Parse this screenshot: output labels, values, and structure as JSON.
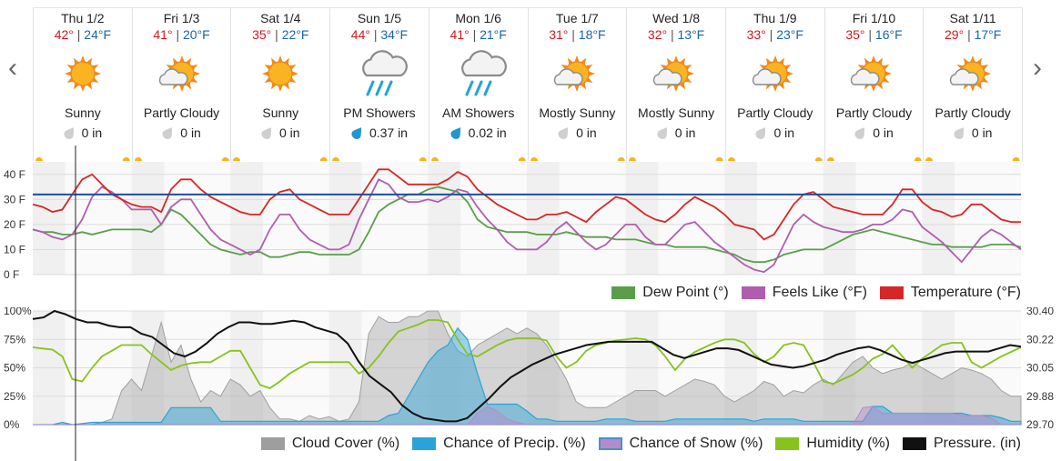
{
  "days": [
    {
      "name": "Thu 1/2",
      "hi": "42°",
      "lo": "24°F",
      "icon": "sunny-icon",
      "cond": "Sunny",
      "precip": "0 in",
      "drop": "gray"
    },
    {
      "name": "Fri 1/3",
      "hi": "41°",
      "lo": "20°F",
      "icon": "partly-cloudy-icon",
      "cond": "Partly Cloudy",
      "precip": "0 in",
      "drop": "gray"
    },
    {
      "name": "Sat 1/4",
      "hi": "35°",
      "lo": "22°F",
      "icon": "sunny-icon",
      "cond": "Sunny",
      "precip": "0 in",
      "drop": "gray"
    },
    {
      "name": "Sun 1/5",
      "hi": "44°",
      "lo": "34°F",
      "icon": "rain-showers-icon",
      "cond": "PM Showers",
      "precip": "0.37 in",
      "drop": "blue"
    },
    {
      "name": "Mon 1/6",
      "hi": "41°",
      "lo": "21°F",
      "icon": "rain-showers-icon",
      "cond": "AM Showers",
      "precip": "0.02 in",
      "drop": "blue"
    },
    {
      "name": "Tue 1/7",
      "hi": "31°",
      "lo": "18°F",
      "icon": "partly-cloudy-icon",
      "cond": "Mostly Sunny",
      "precip": "0 in",
      "drop": "gray"
    },
    {
      "name": "Wed 1/8",
      "hi": "32°",
      "lo": "13°F",
      "icon": "partly-cloudy-icon",
      "cond": "Mostly Sunny",
      "precip": "0 in",
      "drop": "gray"
    },
    {
      "name": "Thu 1/9",
      "hi": "33°",
      "lo": "23°F",
      "icon": "partly-cloudy-icon",
      "cond": "Partly Cloudy",
      "precip": "0 in",
      "drop": "gray"
    },
    {
      "name": "Fri 1/10",
      "hi": "35°",
      "lo": "16°F",
      "icon": "partly-cloudy-icon",
      "cond": "Partly Cloudy",
      "precip": "0 in",
      "drop": "gray"
    },
    {
      "name": "Sat 1/11",
      "hi": "29°",
      "lo": "17°F",
      "icon": "partly-cloudy-icon",
      "cond": "Partly Cloudy",
      "precip": "0 in",
      "drop": "gray"
    }
  ],
  "separator": "|",
  "nav": {
    "prev": "‹",
    "next": "›"
  },
  "colors": {
    "temperature": "#d62728",
    "feels_like": "#b05db0",
    "dew_point": "#5a9e4b",
    "freezing": "#1f4e9c",
    "cloud": "#b5b5b5",
    "precip": "#2aa3d8",
    "snow": "#b48bc9",
    "humidity": "#87c31b",
    "pressure": "#111111"
  },
  "chart_data": [
    {
      "type": "line",
      "y_ticks": [
        "40 F",
        "30 F",
        "20 F",
        "10 F",
        "0 F"
      ],
      "ylim": [
        0,
        45
      ],
      "freezing_line": 32,
      "legend": [
        "Dew Point (°)",
        "Feels Like (°F)",
        "Temperature (°F)"
      ],
      "x_days": 10,
      "series": [
        {
          "name": "Temperature (°F)",
          "values": [
            28,
            27,
            25,
            26,
            32,
            38,
            40,
            36,
            32,
            30,
            28,
            27,
            27,
            25,
            34,
            38,
            38,
            34,
            31,
            29,
            27,
            25,
            24,
            24,
            30,
            33,
            34,
            30,
            28,
            26,
            24,
            24,
            24,
            30,
            36,
            42,
            42,
            39,
            36,
            36,
            36,
            36,
            38,
            41,
            39,
            34,
            31,
            28,
            26,
            24,
            22,
            22,
            24,
            24,
            25,
            23,
            21,
            25,
            28,
            31,
            30,
            27,
            24,
            22,
            21,
            24,
            28,
            31,
            29,
            27,
            24,
            20,
            19,
            18,
            14,
            16,
            22,
            28,
            32,
            33,
            30,
            27,
            26,
            25,
            24,
            24,
            24,
            28,
            34,
            34,
            29,
            26,
            25,
            23,
            24,
            28,
            28,
            25,
            22,
            21,
            21
          ]
        },
        {
          "name": "Feels Like (°F)",
          "values": [
            18,
            17,
            15,
            14,
            16,
            22,
            31,
            35,
            33,
            30,
            26,
            26,
            26,
            20,
            27,
            30,
            30,
            24,
            18,
            14,
            12,
            10,
            8,
            10,
            18,
            24,
            24,
            18,
            14,
            12,
            10,
            10,
            12,
            22,
            30,
            38,
            36,
            31,
            29,
            29,
            30,
            29,
            31,
            34,
            33,
            27,
            22,
            18,
            13,
            10,
            10,
            10,
            13,
            18,
            21,
            17,
            13,
            10,
            12,
            16,
            20,
            20,
            15,
            12,
            12,
            16,
            20,
            21,
            17,
            13,
            10,
            7,
            4,
            2,
            1,
            4,
            12,
            20,
            24,
            21,
            19,
            18,
            17,
            17,
            18,
            20,
            20,
            22,
            26,
            25,
            19,
            16,
            13,
            9,
            5,
            10,
            15,
            18,
            16,
            13,
            10
          ]
        },
        {
          "name": "Dew Point (°)",
          "values": [
            18,
            17,
            17,
            16,
            16,
            17,
            16,
            17,
            18,
            18,
            18,
            18,
            17,
            20,
            26,
            24,
            20,
            16,
            12,
            10,
            9,
            8,
            9,
            9,
            7,
            7,
            8,
            9,
            9,
            8,
            8,
            8,
            8,
            10,
            17,
            25,
            28,
            30,
            32,
            32,
            34,
            35,
            34,
            33,
            29,
            22,
            19,
            18,
            17,
            17,
            17,
            16,
            16,
            16,
            17,
            16,
            15,
            15,
            15,
            14,
            14,
            14,
            13,
            12,
            12,
            11,
            11,
            11,
            11,
            10,
            9,
            8,
            6,
            5,
            5,
            6,
            8,
            9,
            10,
            10,
            10,
            12,
            14,
            16,
            17,
            18,
            17,
            16,
            15,
            14,
            13,
            12,
            12,
            11,
            11,
            11,
            11,
            12,
            12,
            12,
            11
          ]
        }
      ]
    },
    {
      "type": "area",
      "y_ticks_left": [
        "100%",
        "75%",
        "50%",
        "25%",
        "0%"
      ],
      "y_ticks_right": [
        "30.40",
        "30.22",
        "30.05",
        "29.88",
        "29.70"
      ],
      "ylim_left": [
        0,
        100
      ],
      "ylim_right": [
        29.7,
        30.4
      ],
      "legend": [
        "Cloud Cover (%)",
        "Chance of Precip. (%)",
        "Chance of Snow (%)",
        "Humidity (%)",
        "Pressure. (in)"
      ],
      "series": [
        {
          "name": "Cloud Cover (%)",
          "values": [
            0,
            0,
            0,
            0,
            0,
            0,
            0,
            2,
            5,
            30,
            40,
            30,
            60,
            90,
            55,
            70,
            40,
            20,
            30,
            25,
            40,
            35,
            25,
            30,
            15,
            5,
            5,
            3,
            8,
            5,
            7,
            3,
            5,
            20,
            80,
            95,
            90,
            90,
            95,
            95,
            100,
            100,
            80,
            65,
            60,
            70,
            75,
            80,
            85,
            80,
            85,
            80,
            70,
            55,
            40,
            20,
            15,
            15,
            15,
            20,
            25,
            30,
            30,
            30,
            25,
            30,
            35,
            40,
            38,
            35,
            25,
            20,
            25,
            30,
            38,
            35,
            25,
            30,
            28,
            35,
            40,
            35,
            45,
            55,
            60,
            50,
            45,
            48,
            50,
            55,
            50,
            45,
            40,
            45,
            50,
            48,
            45,
            40,
            30,
            25,
            25
          ]
        },
        {
          "name": "Chance of Precip. (%)",
          "values": [
            0,
            0,
            0,
            2,
            0,
            1,
            2,
            2,
            2,
            2,
            2,
            2,
            2,
            2,
            15,
            15,
            15,
            15,
            15,
            3,
            3,
            3,
            3,
            3,
            3,
            3,
            3,
            3,
            3,
            3,
            3,
            3,
            3,
            3,
            3,
            3,
            8,
            10,
            25,
            40,
            55,
            65,
            70,
            85,
            75,
            45,
            18,
            18,
            18,
            18,
            12,
            5,
            5,
            3,
            3,
            3,
            3,
            3,
            5,
            5,
            5,
            3,
            3,
            3,
            3,
            5,
            5,
            5,
            5,
            5,
            5,
            5,
            5,
            3,
            5,
            5,
            5,
            5,
            3,
            3,
            3,
            3,
            3,
            3,
            3,
            16,
            16,
            10,
            10,
            10,
            10,
            10,
            10,
            10,
            10,
            8,
            8,
            8,
            6,
            3,
            3
          ]
        },
        {
          "name": "Chance of Snow (%)",
          "values": [
            0,
            0,
            0,
            0,
            0,
            0,
            0,
            0,
            0,
            0,
            0,
            0,
            0,
            0,
            0,
            0,
            0,
            0,
            0,
            0,
            0,
            0,
            0,
            0,
            0,
            0,
            0,
            0,
            0,
            0,
            0,
            0,
            0,
            0,
            0,
            0,
            0,
            0,
            0,
            0,
            0,
            0,
            0,
            0,
            0,
            10,
            16,
            12,
            5,
            2,
            0,
            0,
            0,
            0,
            0,
            0,
            0,
            0,
            0,
            0,
            0,
            0,
            0,
            0,
            0,
            0,
            0,
            0,
            0,
            0,
            0,
            0,
            0,
            0,
            0,
            0,
            0,
            0,
            0,
            0,
            0,
            0,
            0,
            0,
            15,
            16,
            10,
            10,
            10,
            10,
            10,
            10,
            10,
            10,
            8,
            8,
            8,
            6,
            0,
            0,
            0
          ]
        },
        {
          "name": "Humidity (%)",
          "values": [
            68,
            67,
            66,
            60,
            40,
            38,
            50,
            60,
            65,
            70,
            70,
            70,
            62,
            55,
            48,
            52,
            54,
            55,
            55,
            60,
            65,
            65,
            50,
            35,
            32,
            38,
            45,
            50,
            55,
            55,
            55,
            55,
            55,
            45,
            50,
            60,
            72,
            82,
            85,
            88,
            92,
            92,
            90,
            75,
            62,
            60,
            65,
            70,
            74,
            76,
            76,
            76,
            74,
            60,
            50,
            55,
            65,
            70,
            72,
            74,
            75,
            76,
            75,
            70,
            60,
            48,
            58,
            64,
            68,
            72,
            75,
            75,
            72,
            62,
            55,
            60,
            70,
            72,
            70,
            55,
            38,
            36,
            40,
            44,
            50,
            58,
            62,
            70,
            60,
            50,
            58,
            64,
            70,
            72,
            72,
            55,
            50,
            55,
            60,
            64,
            68
          ]
        },
        {
          "name": "Pressure. (in)",
          "values": [
            30.35,
            30.36,
            30.4,
            30.38,
            30.35,
            30.33,
            30.33,
            30.31,
            30.3,
            30.3,
            30.26,
            30.24,
            30.19,
            30.14,
            30.12,
            30.15,
            30.2,
            30.26,
            30.3,
            30.33,
            30.33,
            30.32,
            30.32,
            30.33,
            30.34,
            30.33,
            30.3,
            30.28,
            30.26,
            30.2,
            30.09,
            30.0,
            29.95,
            29.9,
            29.82,
            29.77,
            29.74,
            29.73,
            29.72,
            29.72,
            29.74,
            29.8,
            29.86,
            29.93,
            29.99,
            30.03,
            30.07,
            30.1,
            30.13,
            30.15,
            30.17,
            30.19,
            30.2,
            30.21,
            30.21,
            30.21,
            30.21,
            30.21,
            30.17,
            30.13,
            30.11,
            30.13,
            30.15,
            30.17,
            30.17,
            30.16,
            30.13,
            30.1,
            30.07,
            30.06,
            30.05,
            30.06,
            30.08,
            30.1,
            30.13,
            30.15,
            30.17,
            30.18,
            30.16,
            30.13,
            30.1,
            30.08,
            30.1,
            30.12,
            30.14,
            30.15,
            30.15,
            30.15,
            30.15,
            30.17,
            30.19,
            30.18
          ]
        }
      ]
    }
  ]
}
